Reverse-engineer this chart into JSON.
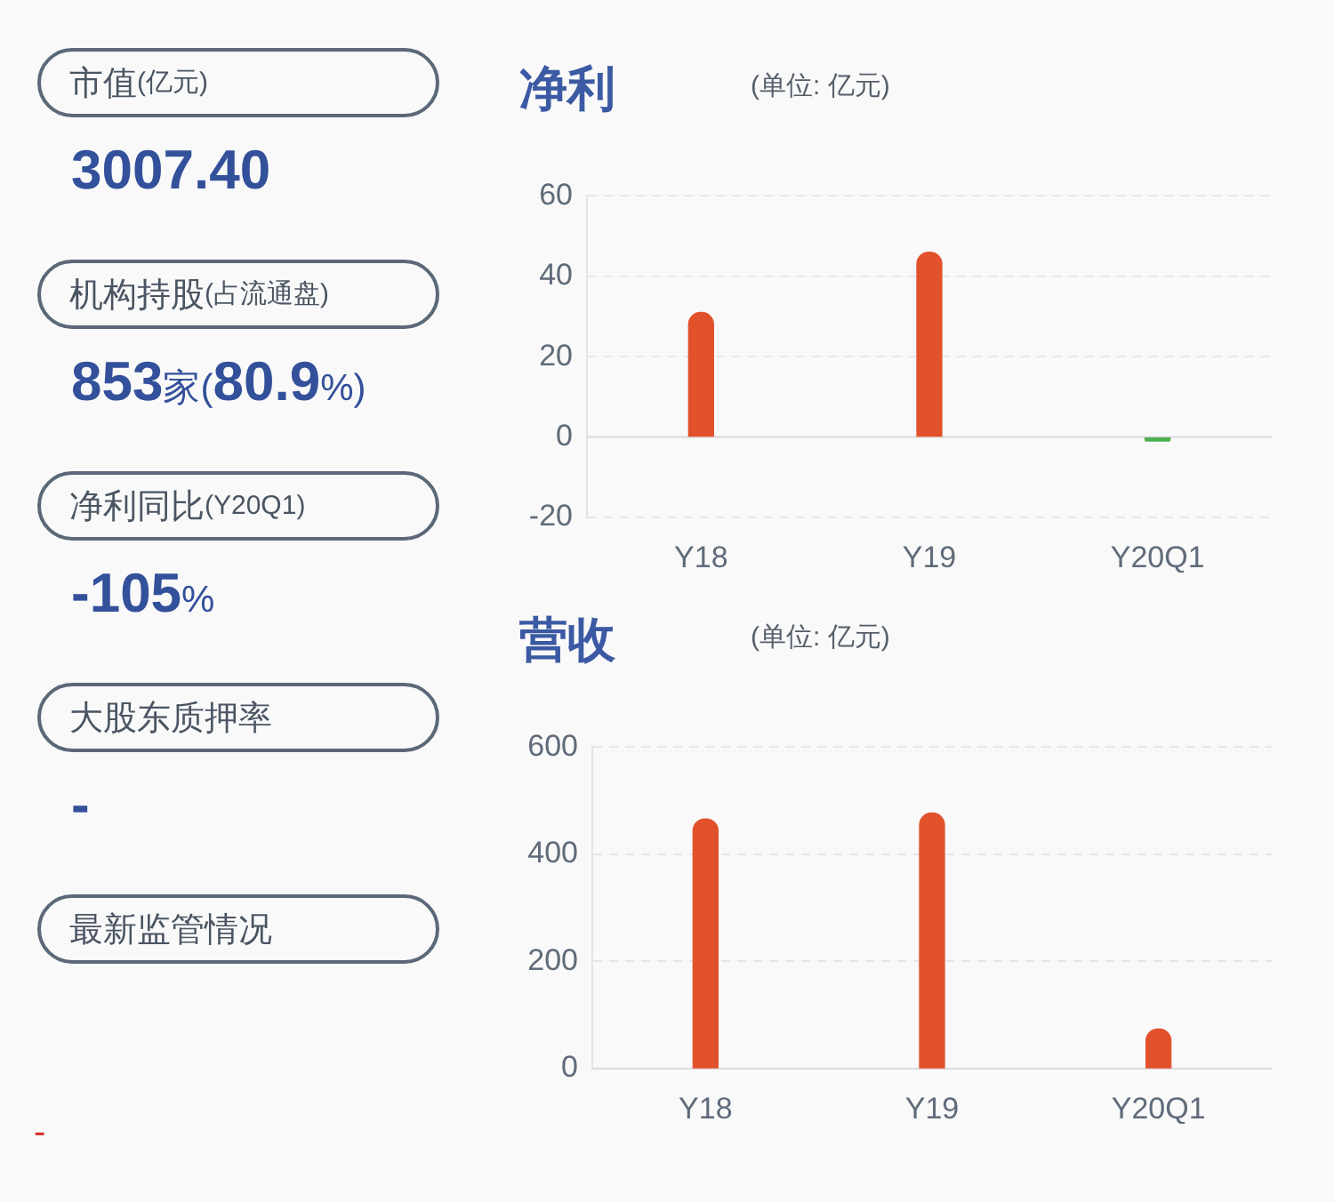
{
  "chart_data": [
    {
      "type": "other",
      "annotations": [
        "市值(亿元)",
        "3007.40",
        "机构持股(占流通盘)",
        "853家(80.9%)",
        "净利同比(Y20Q1)",
        "-105%",
        "大股东质押率",
        "-",
        "最新监管情况",
        "-"
      ]
    },
    {
      "type": "bar",
      "title": "净利",
      "subtitle": "(单位: 亿元)",
      "categories": [
        "Y18",
        "Y19",
        "Y20Q1"
      ],
      "values": [
        31,
        46,
        -1
      ],
      "colors": [
        "#e1512b",
        "#e1512b",
        "#4caf50"
      ],
      "ylim": [
        -20,
        60
      ],
      "yticks": [
        -20,
        0,
        20,
        40,
        60
      ],
      "grid": "y"
    },
    {
      "type": "bar",
      "title": "营收",
      "subtitle": "(单位: 亿元)",
      "categories": [
        "Y18",
        "Y19",
        "Y20Q1"
      ],
      "values": [
        466,
        477,
        74
      ],
      "colors": [
        "#e1512b",
        "#e1512b",
        "#e1512b"
      ],
      "ylim": [
        0,
        600
      ],
      "yticks": [
        0,
        200,
        400,
        600
      ],
      "grid": "y"
    }
  ]
}
